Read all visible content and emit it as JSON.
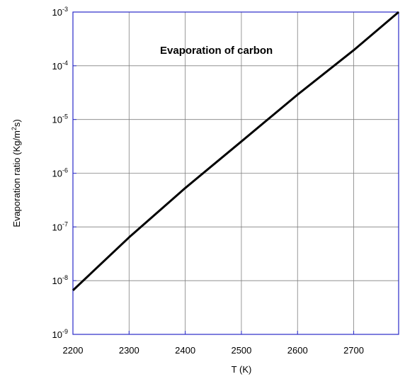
{
  "chart_data": {
    "type": "line",
    "annotation": "Evaporation of carbon",
    "xlabel": "T (K)",
    "ylabel": "Evaporation ratio (Kg/m²s)",
    "ylabel_parts": {
      "before": "Evaporation ratio (Kg/m",
      "sup": "2",
      "after": "s)"
    },
    "x_scale": "linear",
    "y_scale": "log",
    "xlim": [
      2200,
      2780
    ],
    "ylim": [
      1e-09,
      0.001
    ],
    "x_ticks": [
      2200,
      2300,
      2400,
      2500,
      2600,
      2700
    ],
    "x_tick_labels": [
      "2200",
      "2300",
      "2400",
      "2500",
      "2600",
      "2700"
    ],
    "y_ticks": [
      {
        "value": 1e-09,
        "base": "10",
        "exp": "-9"
      },
      {
        "value": 1e-08,
        "base": "10",
        "exp": "-8"
      },
      {
        "value": 1e-07,
        "base": "10",
        "exp": "-7"
      },
      {
        "value": 1e-06,
        "base": "10",
        "exp": "-6"
      },
      {
        "value": 1e-05,
        "base": "10",
        "exp": "-5"
      },
      {
        "value": 0.0001,
        "base": "10",
        "exp": "-4"
      },
      {
        "value": 0.001,
        "base": "10",
        "exp": "-3"
      }
    ],
    "grid": true,
    "series": [
      {
        "x": [
          2200,
          2300,
          2400,
          2500,
          2600,
          2700,
          2780
        ],
        "y": [
          6.6e-09,
          6.4e-08,
          5.3e-07,
          3.9e-06,
          2.9e-05,
          0.000195,
          0.001
        ]
      }
    ],
    "colors": {
      "frame": "#2a2ac8",
      "grid": "#808080",
      "line": "#000000"
    }
  }
}
